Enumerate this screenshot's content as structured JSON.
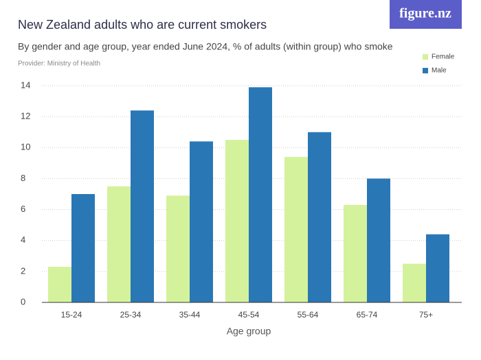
{
  "chart_data": {
    "type": "bar",
    "title": "New Zealand adults who are current smokers",
    "subtitle": "By gender and age group, year ended June 2024, % of adults (within group) who smoke",
    "provider": "Provider: Ministry of Health",
    "logo": "figure.nz",
    "x_label": "Age group",
    "categories": [
      "15-24",
      "25-34",
      "35-44",
      "45-54",
      "55-64",
      "65-74",
      "75+"
    ],
    "series": [
      {
        "name": "Female",
        "color": "#d4f29b",
        "values": [
          2.3,
          7.5,
          6.9,
          10.5,
          9.4,
          6.3,
          2.5
        ]
      },
      {
        "name": "Male",
        "color": "#2a77b6",
        "values": [
          7.0,
          12.4,
          10.4,
          13.9,
          11.0,
          8.0,
          4.4
        ]
      }
    ],
    "ylim": [
      0,
      14
    ],
    "yticks": [
      0,
      2,
      4,
      6,
      8,
      10,
      12,
      14
    ],
    "grid": true,
    "legend": "top-right"
  }
}
